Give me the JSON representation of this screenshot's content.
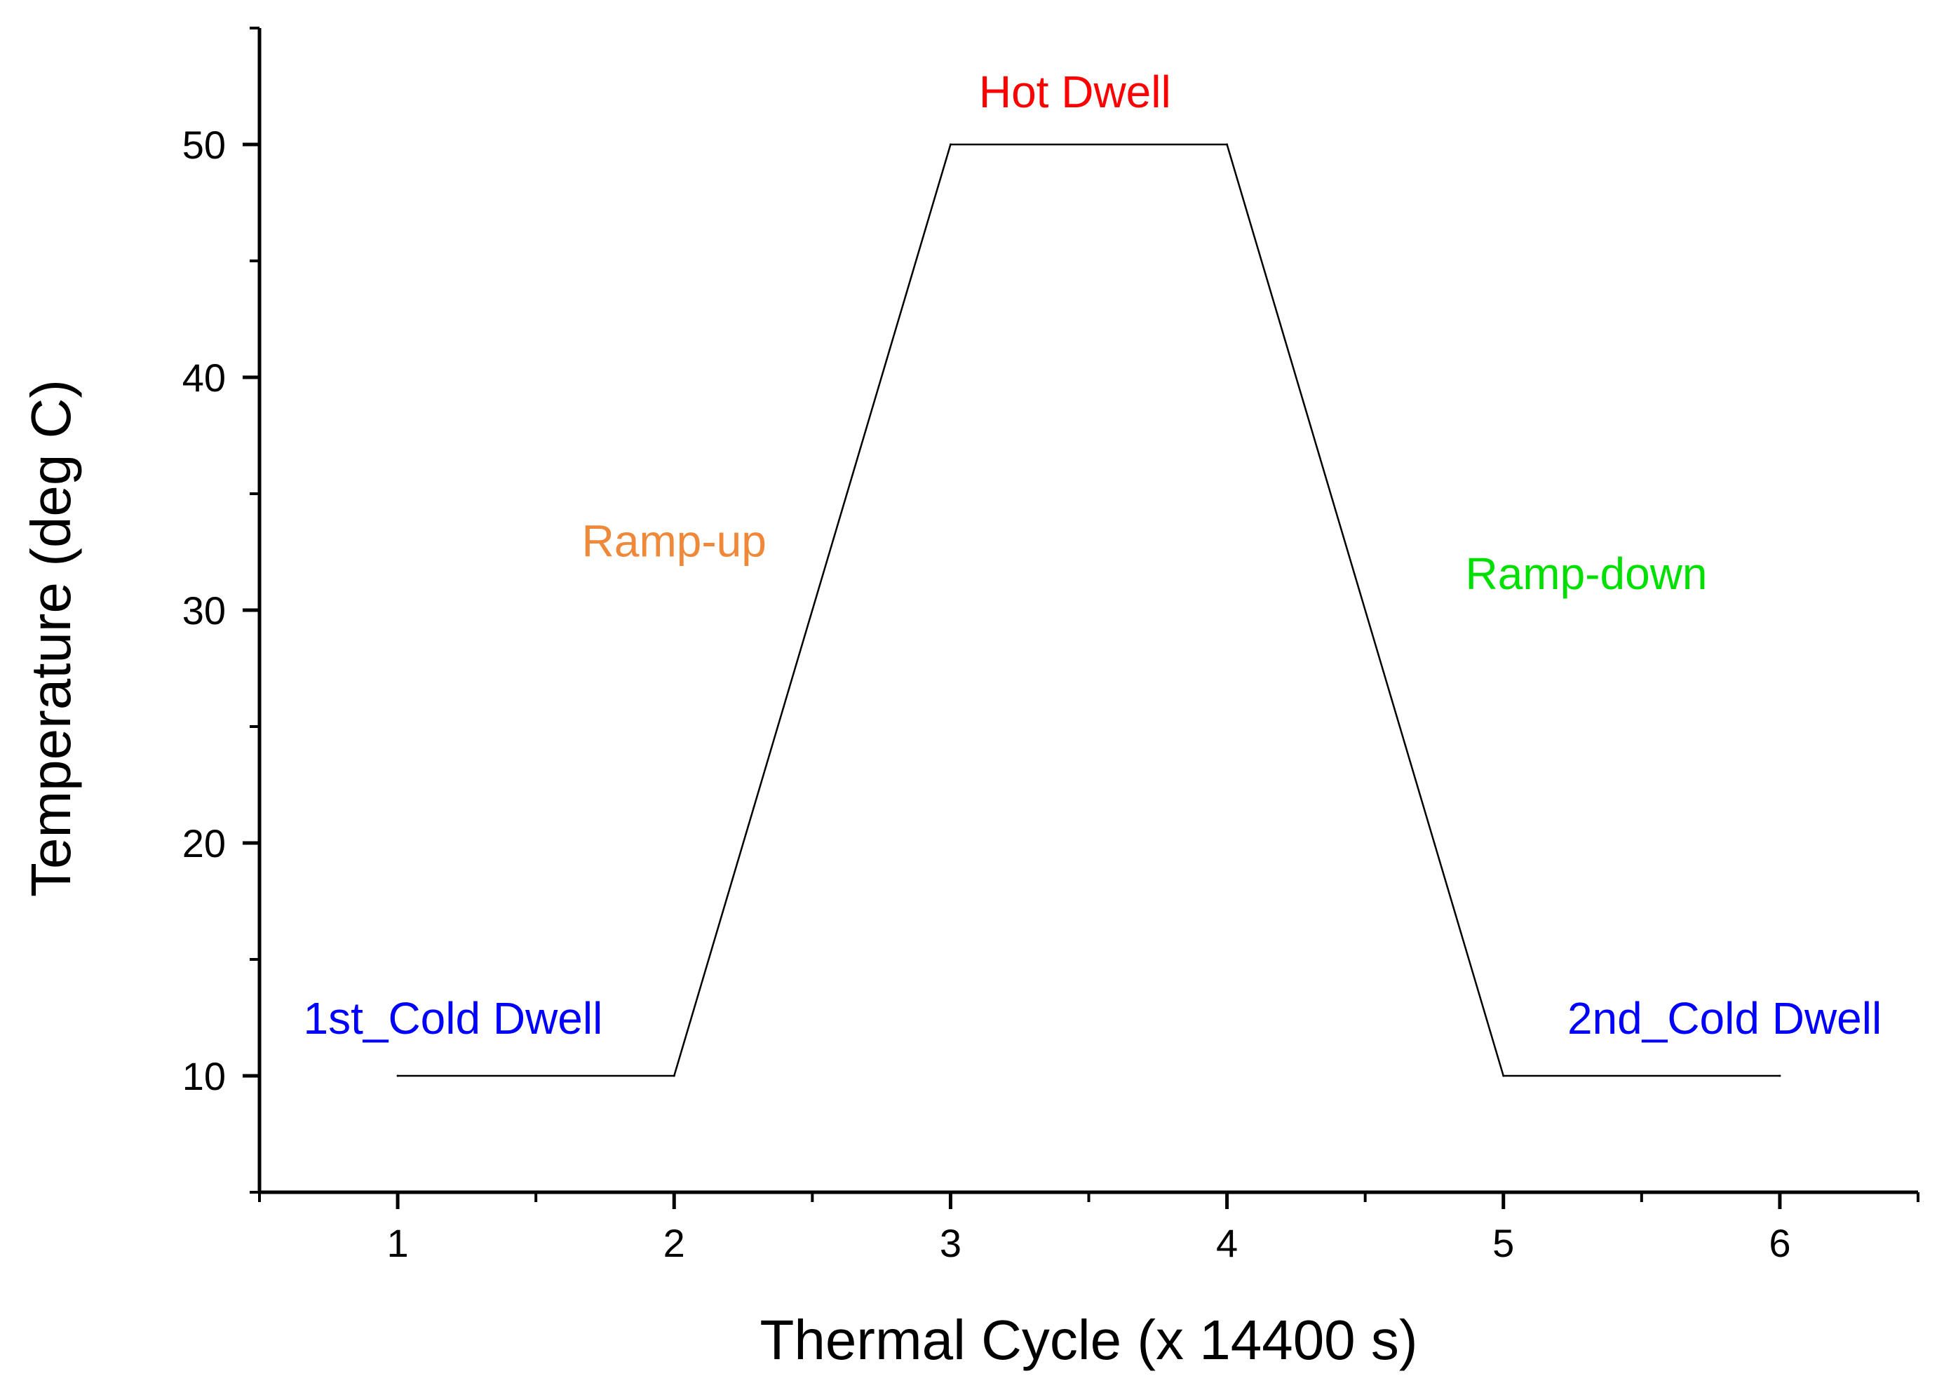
{
  "chart_data": {
    "type": "line",
    "title": "",
    "xlabel": "Thermal Cycle (x 14400 s)",
    "ylabel": "Temperature (deg C)",
    "xlim": [
      0.5,
      6.5
    ],
    "ylim": [
      5,
      55
    ],
    "xticks": [
      1,
      2,
      3,
      4,
      5,
      6
    ],
    "xtick_labels": [
      "1",
      "2",
      "3",
      "4",
      "5",
      "6"
    ],
    "xminor": [
      0.5,
      1.5,
      2.5,
      3.5,
      4.5,
      5.5,
      6.5
    ],
    "yticks": [
      10,
      20,
      30,
      40,
      50
    ],
    "ytick_labels": [
      "10",
      "20",
      "30",
      "40",
      "50"
    ],
    "yminor": [
      5,
      15,
      25,
      35,
      45,
      55
    ],
    "grid": false,
    "series": [
      {
        "name": "thermal-cycle-profile",
        "x": [
          1,
          2,
          3,
          4,
          5,
          6
        ],
        "y": [
          10,
          10,
          50,
          50,
          10,
          10
        ],
        "color": "#000000"
      }
    ],
    "annotations": [
      {
        "text": "1st_Cold Dwell",
        "x": 1.2,
        "y": 11.8,
        "color": "#0000ff"
      },
      {
        "text": "Ramp-up",
        "x": 2.0,
        "y": 32.3,
        "color": "#f0883a"
      },
      {
        "text": "Hot Dwell",
        "x": 3.45,
        "y": 51.6,
        "color": "#ff0000"
      },
      {
        "text": "Ramp-down",
        "x": 5.3,
        "y": 30.9,
        "color": "#00e000"
      },
      {
        "text": "2nd_Cold Dwell",
        "x": 5.8,
        "y": 11.8,
        "color": "#0000ff"
      }
    ]
  }
}
